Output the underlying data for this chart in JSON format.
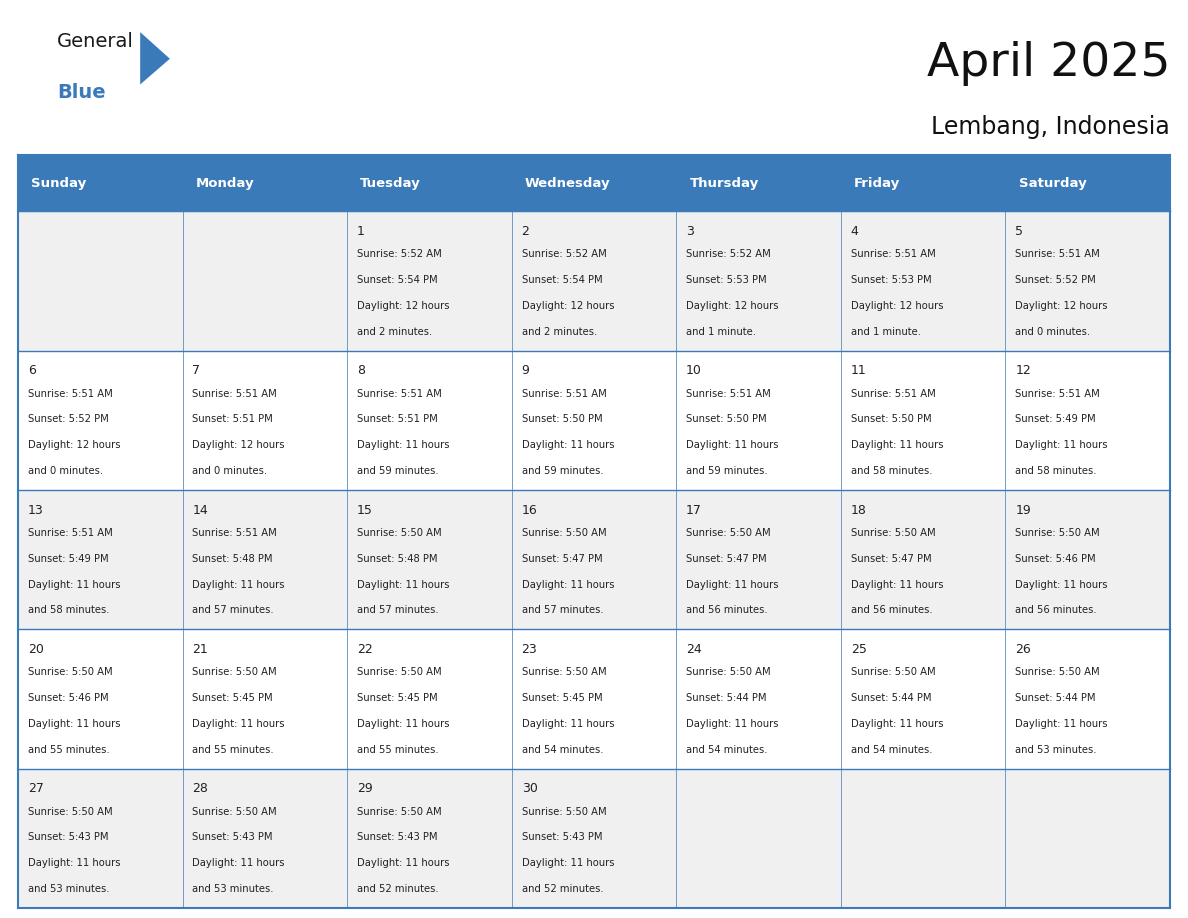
{
  "title": "April 2025",
  "subtitle": "Lembang, Indonesia",
  "header_bg": "#3a7ab8",
  "header_text_color": "#ffffff",
  "row_bg_light": "#f0f0f0",
  "row_bg_white": "#ffffff",
  "border_color": "#3a7ab8",
  "text_color": "#222222",
  "days_of_week": [
    "Sunday",
    "Monday",
    "Tuesday",
    "Wednesday",
    "Thursday",
    "Friday",
    "Saturday"
  ],
  "calendar_data": [
    [
      {
        "day": "",
        "sunrise": "",
        "sunset": "",
        "daylight": ""
      },
      {
        "day": "",
        "sunrise": "",
        "sunset": "",
        "daylight": ""
      },
      {
        "day": "1",
        "sunrise": "5:52 AM",
        "sunset": "5:54 PM",
        "daylight": "12 hours",
        "daylight2": "and 2 minutes."
      },
      {
        "day": "2",
        "sunrise": "5:52 AM",
        "sunset": "5:54 PM",
        "daylight": "12 hours",
        "daylight2": "and 2 minutes."
      },
      {
        "day": "3",
        "sunrise": "5:52 AM",
        "sunset": "5:53 PM",
        "daylight": "12 hours",
        "daylight2": "and 1 minute."
      },
      {
        "day": "4",
        "sunrise": "5:51 AM",
        "sunset": "5:53 PM",
        "daylight": "12 hours",
        "daylight2": "and 1 minute."
      },
      {
        "day": "5",
        "sunrise": "5:51 AM",
        "sunset": "5:52 PM",
        "daylight": "12 hours",
        "daylight2": "and 0 minutes."
      }
    ],
    [
      {
        "day": "6",
        "sunrise": "5:51 AM",
        "sunset": "5:52 PM",
        "daylight": "12 hours",
        "daylight2": "and 0 minutes."
      },
      {
        "day": "7",
        "sunrise": "5:51 AM",
        "sunset": "5:51 PM",
        "daylight": "12 hours",
        "daylight2": "and 0 minutes."
      },
      {
        "day": "8",
        "sunrise": "5:51 AM",
        "sunset": "5:51 PM",
        "daylight": "11 hours",
        "daylight2": "and 59 minutes."
      },
      {
        "day": "9",
        "sunrise": "5:51 AM",
        "sunset": "5:50 PM",
        "daylight": "11 hours",
        "daylight2": "and 59 minutes."
      },
      {
        "day": "10",
        "sunrise": "5:51 AM",
        "sunset": "5:50 PM",
        "daylight": "11 hours",
        "daylight2": "and 59 minutes."
      },
      {
        "day": "11",
        "sunrise": "5:51 AM",
        "sunset": "5:50 PM",
        "daylight": "11 hours",
        "daylight2": "and 58 minutes."
      },
      {
        "day": "12",
        "sunrise": "5:51 AM",
        "sunset": "5:49 PM",
        "daylight": "11 hours",
        "daylight2": "and 58 minutes."
      }
    ],
    [
      {
        "day": "13",
        "sunrise": "5:51 AM",
        "sunset": "5:49 PM",
        "daylight": "11 hours",
        "daylight2": "and 58 minutes."
      },
      {
        "day": "14",
        "sunrise": "5:51 AM",
        "sunset": "5:48 PM",
        "daylight": "11 hours",
        "daylight2": "and 57 minutes."
      },
      {
        "day": "15",
        "sunrise": "5:50 AM",
        "sunset": "5:48 PM",
        "daylight": "11 hours",
        "daylight2": "and 57 minutes."
      },
      {
        "day": "16",
        "sunrise": "5:50 AM",
        "sunset": "5:47 PM",
        "daylight": "11 hours",
        "daylight2": "and 57 minutes."
      },
      {
        "day": "17",
        "sunrise": "5:50 AM",
        "sunset": "5:47 PM",
        "daylight": "11 hours",
        "daylight2": "and 56 minutes."
      },
      {
        "day": "18",
        "sunrise": "5:50 AM",
        "sunset": "5:47 PM",
        "daylight": "11 hours",
        "daylight2": "and 56 minutes."
      },
      {
        "day": "19",
        "sunrise": "5:50 AM",
        "sunset": "5:46 PM",
        "daylight": "11 hours",
        "daylight2": "and 56 minutes."
      }
    ],
    [
      {
        "day": "20",
        "sunrise": "5:50 AM",
        "sunset": "5:46 PM",
        "daylight": "11 hours",
        "daylight2": "and 55 minutes."
      },
      {
        "day": "21",
        "sunrise": "5:50 AM",
        "sunset": "5:45 PM",
        "daylight": "11 hours",
        "daylight2": "and 55 minutes."
      },
      {
        "day": "22",
        "sunrise": "5:50 AM",
        "sunset": "5:45 PM",
        "daylight": "11 hours",
        "daylight2": "and 55 minutes."
      },
      {
        "day": "23",
        "sunrise": "5:50 AM",
        "sunset": "5:45 PM",
        "daylight": "11 hours",
        "daylight2": "and 54 minutes."
      },
      {
        "day": "24",
        "sunrise": "5:50 AM",
        "sunset": "5:44 PM",
        "daylight": "11 hours",
        "daylight2": "and 54 minutes."
      },
      {
        "day": "25",
        "sunrise": "5:50 AM",
        "sunset": "5:44 PM",
        "daylight": "11 hours",
        "daylight2": "and 54 minutes."
      },
      {
        "day": "26",
        "sunrise": "5:50 AM",
        "sunset": "5:44 PM",
        "daylight": "11 hours",
        "daylight2": "and 53 minutes."
      }
    ],
    [
      {
        "day": "27",
        "sunrise": "5:50 AM",
        "sunset": "5:43 PM",
        "daylight": "11 hours",
        "daylight2": "and 53 minutes."
      },
      {
        "day": "28",
        "sunrise": "5:50 AM",
        "sunset": "5:43 PM",
        "daylight": "11 hours",
        "daylight2": "and 53 minutes."
      },
      {
        "day": "29",
        "sunrise": "5:50 AM",
        "sunset": "5:43 PM",
        "daylight": "11 hours",
        "daylight2": "and 52 minutes."
      },
      {
        "day": "30",
        "sunrise": "5:50 AM",
        "sunset": "5:43 PM",
        "daylight": "11 hours",
        "daylight2": "and 52 minutes."
      },
      {
        "day": "",
        "sunrise": "",
        "sunset": "",
        "daylight": "",
        "daylight2": ""
      },
      {
        "day": "",
        "sunrise": "",
        "sunset": "",
        "daylight": "",
        "daylight2": ""
      },
      {
        "day": "",
        "sunrise": "",
        "sunset": "",
        "daylight": "",
        "daylight2": ""
      }
    ]
  ],
  "logo_general_color": "#1a1a1a",
  "logo_blue_color": "#3a7ab8",
  "logo_triangle_color": "#3a7ab8"
}
